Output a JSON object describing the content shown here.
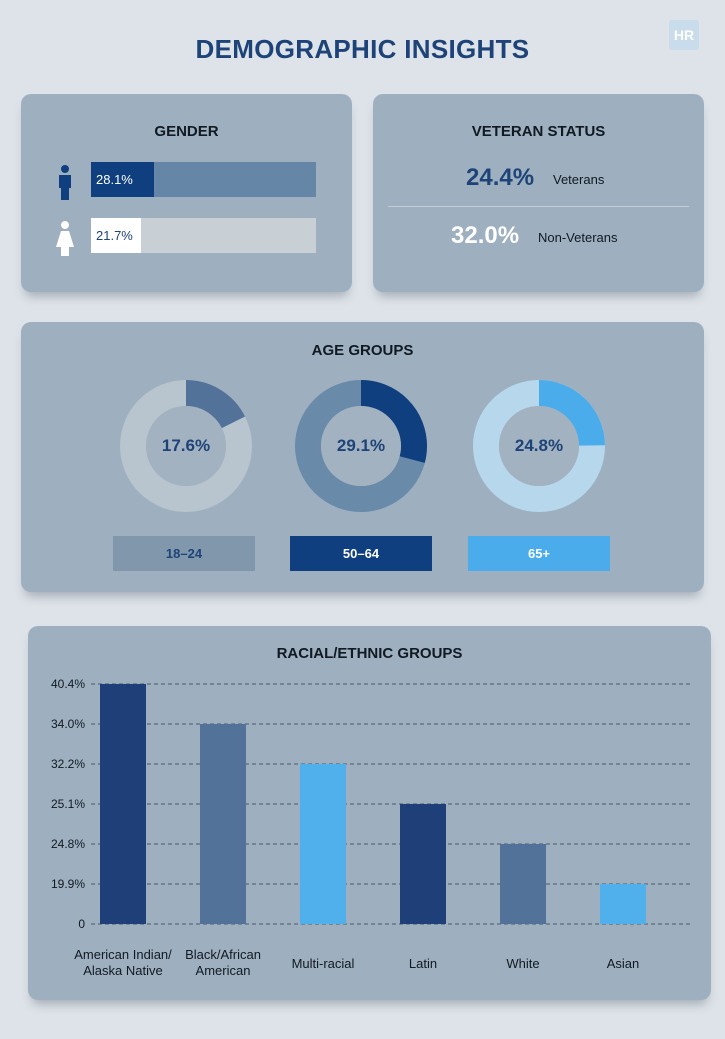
{
  "page": {
    "title": "DEMOGRAPHIC INSIGHTS",
    "logo_text": "HR"
  },
  "gender": {
    "title": "GENDER",
    "items": [
      {
        "icon": "male-icon",
        "label": "28.1%",
        "value": 28.1,
        "fill_fraction": 0.28,
        "fill_color": "#0f3f7e",
        "track_color": "#6586a6",
        "text_color": "#ffffff"
      },
      {
        "icon": "female-icon",
        "label": "21.7%",
        "value": 21.7,
        "fill_fraction": 0.22,
        "fill_color": "#ffffff",
        "track_color": "#c8cfd5",
        "text_color": "#1e4378"
      }
    ]
  },
  "veteran": {
    "title": "VETERAN STATUS",
    "items": [
      {
        "value": "24.4%",
        "label": "Veterans",
        "color": "#1e4378"
      },
      {
        "value": "32.0%",
        "label": "Non-Veterans",
        "color": "#ffffff"
      }
    ]
  },
  "age_groups": {
    "title": "AGE GROUPS",
    "items": [
      {
        "label": "18–24",
        "value": 17.6,
        "value_label": "17.6%",
        "segment_color": "#52729a",
        "ring_color": "#b8c4ce",
        "inner_color": "#a2b2c0",
        "tag_bg": "#8197ab",
        "tag_text": "#1e4378"
      },
      {
        "label": "50–64",
        "value": 29.1,
        "value_label": "29.1%",
        "segment_color": "#0f3f7e",
        "ring_color": "#6a8aaa",
        "inner_color": "#a2b2c0",
        "tag_bg": "#0f3f7e",
        "tag_text": "#ffffff"
      },
      {
        "label": "65+",
        "value": 24.8,
        "value_label": "24.8%",
        "segment_color": "#4aacea",
        "ring_color": "#b7d8ec",
        "inner_color": "#a2b2c0",
        "tag_bg": "#4aacea",
        "tag_text": "#ffffff"
      }
    ]
  },
  "chart_data": {
    "type": "bar",
    "title": "RACIAL/ETHNIC GROUPS",
    "categories": [
      "American Indian/\nAlaska Native",
      "Black/African\nAmerican",
      "Multi-racial",
      "Latin",
      "White",
      "Asian"
    ],
    "values": [
      40.4,
      34.0,
      32.2,
      25.1,
      24.8,
      19.9
    ],
    "colors": [
      "#1e3f78",
      "#52729a",
      "#4fb0ec",
      "#1e3f78",
      "#52729a",
      "#4fb0ec"
    ],
    "y_tick_labels": [
      "0",
      "19.9%",
      "24.8%",
      "25.1%",
      "32.2%",
      "34.0%",
      "40.4%"
    ],
    "grid": "dashed",
    "xlabel": "",
    "ylabel": ""
  }
}
